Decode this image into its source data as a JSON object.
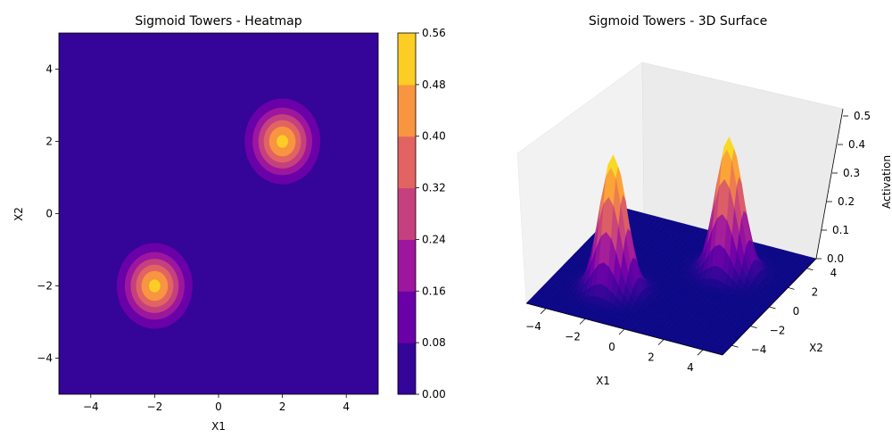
{
  "chart_data": [
    {
      "type": "heatmap",
      "title": "Sigmoid Towers - Heatmap",
      "xlabel": "X1",
      "ylabel": "X2",
      "xlim": [
        -5,
        5
      ],
      "ylim": [
        -5,
        5
      ],
      "xticks": [
        "−4",
        "−2",
        "0",
        "2",
        "4"
      ],
      "yticks": [
        "−4",
        "−2",
        "0",
        "2",
        "4"
      ],
      "colormap": "plasma",
      "grid": false,
      "peaks": [
        {
          "x": 2,
          "y": 2,
          "value": 0.5
        },
        {
          "x": -2,
          "y": -2,
          "value": 0.5
        }
      ],
      "contour_levels": [
        0.0,
        0.08,
        0.16,
        0.24,
        0.32,
        0.4,
        0.48,
        0.56
      ],
      "level_colors": [
        "#350498",
        "#6a00a8",
        "#9c179e",
        "#c5407e",
        "#e16462",
        "#f89540",
        "#fcce25"
      ],
      "colorbar": {
        "ticks": [
          "0.00",
          "0.08",
          "0.16",
          "0.24",
          "0.32",
          "0.40",
          "0.48",
          "0.56"
        ]
      }
    },
    {
      "type": "surface",
      "title": "Sigmoid Towers - 3D Surface",
      "xlabel": "X1",
      "ylabel": "X2",
      "zlabel": "Activation",
      "xlim": [
        -5,
        5
      ],
      "ylim": [
        -5,
        5
      ],
      "zlim": [
        0,
        0.5
      ],
      "xticks": [
        "−4",
        "−2",
        "0",
        "2",
        "4"
      ],
      "yticks": [
        "−4",
        "−2",
        "0",
        "2",
        "4"
      ],
      "zticks": [
        "0.0",
        "0.1",
        "0.2",
        "0.3",
        "0.4",
        "0.5"
      ],
      "colormap": "plasma",
      "grid": true,
      "peaks": [
        {
          "x": 2,
          "y": 2,
          "value": 0.5
        },
        {
          "x": -2,
          "y": -2,
          "value": 0.5
        }
      ]
    }
  ]
}
